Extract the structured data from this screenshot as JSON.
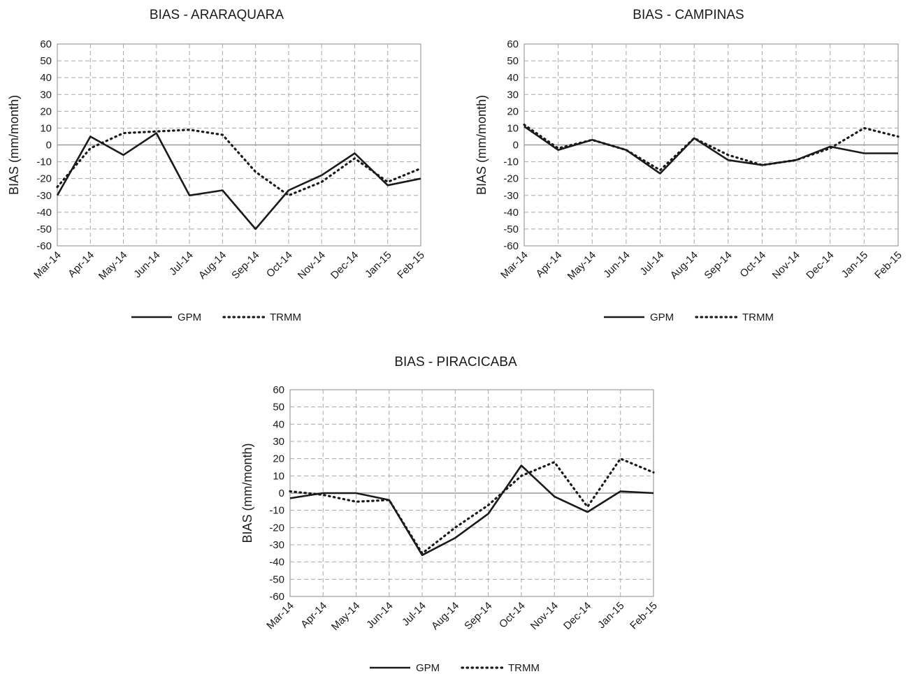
{
  "chart_data": [
    {
      "type": "line",
      "title": "BIAS - ARARAQUARA",
      "ylabel": "BIAS (mm/month)",
      "xlabel": "",
      "ylim": [
        -60,
        60
      ],
      "yticks": [
        60,
        50,
        40,
        30,
        20,
        10,
        0,
        -10,
        -20,
        -30,
        -40,
        -50,
        -60
      ],
      "grid": true,
      "legend_position": "bottom",
      "categories": [
        "Mar-14",
        "Apr-14",
        "May-14",
        "Jun-14",
        "Jul-14",
        "Aug-14",
        "Sep-14",
        "Oct-14",
        "Nov-14",
        "Dec-14",
        "Jan-15",
        "Feb-15"
      ],
      "series": [
        {
          "name": "GPM",
          "style": "solid",
          "values": [
            -30,
            5,
            -6,
            7,
            -30,
            -27,
            -50,
            -27,
            -18,
            -5,
            -24,
            -20
          ]
        },
        {
          "name": "TRMM",
          "style": "dotted",
          "values": [
            -25,
            -2,
            7,
            8,
            9,
            6,
            -16,
            -30,
            -22,
            -8,
            -22,
            -14
          ]
        }
      ]
    },
    {
      "type": "line",
      "title": "BIAS - CAMPINAS",
      "ylabel": "BIAS (mm/month)",
      "xlabel": "",
      "ylim": [
        -60,
        60
      ],
      "yticks": [
        60,
        50,
        40,
        30,
        20,
        10,
        0,
        -10,
        -20,
        -30,
        -40,
        -50,
        -60
      ],
      "grid": true,
      "legend_position": "bottom",
      "categories": [
        "Mar-14",
        "Apr-14",
        "May-14",
        "Jun-14",
        "Jul-14",
        "Aug-14",
        "Sep-14",
        "Oct-14",
        "Nov-14",
        "Dec-14",
        "Jan-15",
        "Feb-15"
      ],
      "series": [
        {
          "name": "GPM",
          "style": "solid",
          "values": [
            11,
            -3,
            3,
            -3,
            -17,
            4,
            -9,
            -12,
            -9,
            -1,
            -5,
            -5
          ]
        },
        {
          "name": "TRMM",
          "style": "dotted",
          "values": [
            12,
            -2,
            3,
            -3,
            -15,
            4,
            -6,
            -12,
            -9,
            -2,
            10,
            5
          ]
        }
      ]
    },
    {
      "type": "line",
      "title": "BIAS - PIRACICABA",
      "ylabel": "BIAS (mm/month)",
      "xlabel": "",
      "ylim": [
        -60,
        60
      ],
      "yticks": [
        60,
        50,
        40,
        30,
        20,
        10,
        0,
        -10,
        -20,
        -30,
        -40,
        -50,
        -60
      ],
      "grid": true,
      "legend_position": "bottom",
      "categories": [
        "Mar-14",
        "Apr-14",
        "May-14",
        "Jun-14",
        "Jul-14",
        "Aug-14",
        "Sep-14",
        "Oct-14",
        "Nov-14",
        "Dec-14",
        "Jan-15",
        "Feb-15"
      ],
      "series": [
        {
          "name": "GPM",
          "style": "solid",
          "values": [
            -3,
            0,
            0,
            -4,
            -36,
            -26,
            -12,
            16,
            -2,
            -11,
            1,
            0
          ]
        },
        {
          "name": "TRMM",
          "style": "dotted",
          "values": [
            1,
            -1,
            -5,
            -4,
            -35,
            -20,
            -7,
            10,
            18,
            -8,
            20,
            12
          ]
        }
      ]
    }
  ],
  "colors": {
    "line": "#1a1a1a",
    "grid": "#a8a8a8",
    "axis": "#8a8a8a",
    "zero_line": "#9a9a9a"
  }
}
